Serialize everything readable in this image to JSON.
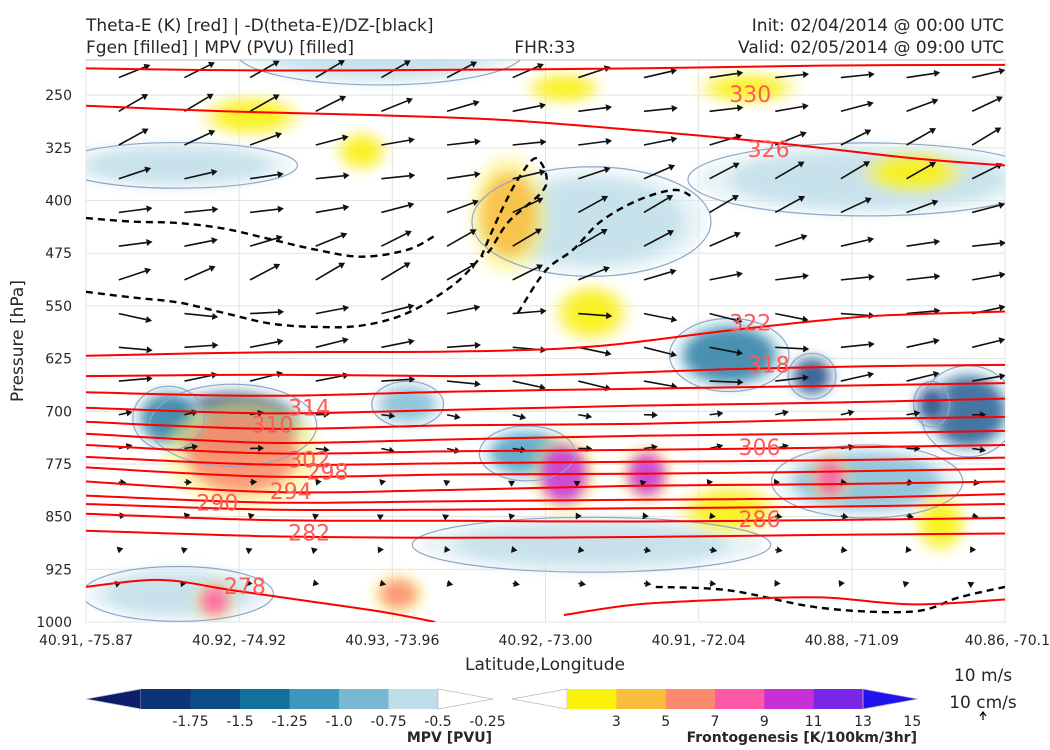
{
  "header": {
    "title_left_1": "Theta-E (K) [red] | -D(theta-E)/DZ-[black]",
    "title_left_2": "Fgen [filled] | MPV (PVU) [filled]",
    "title_center": "FHR:33",
    "title_right_1": "Init: 02/04/2014 @ 00:00 UTC",
    "title_right_2": "Valid: 02/05/2014 @ 09:00 UTC"
  },
  "chart_data": {
    "type": "cross-section",
    "xlabel": "Latitude,Longitude",
    "ylabel": "Pressure [hPa]",
    "ylim": [
      1000,
      200
    ],
    "y_scale": "linear, inverted",
    "grid": true,
    "x_ticks": [
      "40.91, -75.87",
      "40.92, -74.92",
      "40.93, -73.96",
      "40.92, -73.00",
      "40.91, -72.04",
      "40.88, -71.09",
      "40.86, -70.1"
    ],
    "y_ticks": [
      250,
      325,
      400,
      475,
      550,
      625,
      700,
      775,
      850,
      925,
      1000
    ],
    "colors": {
      "theta_e": "#ff0000",
      "stability_contour": "#000000",
      "mpv_contour_line": "#8fa6c8",
      "labels": "#ff5a5a"
    },
    "theta_e_contours": [
      {
        "label": "330",
        "label_pos": [
          0.7,
          260
        ],
        "x": [
          0,
          0.2,
          0.4,
          0.6,
          0.8,
          1.0
        ],
        "p": [
          212,
          215,
          214,
          212,
          208,
          207
        ]
      },
      {
        "label": "326",
        "label_pos": [
          0.72,
          338
        ],
        "x": [
          0,
          0.15,
          0.3,
          0.45,
          0.6,
          0.75,
          0.9,
          1.0
        ],
        "p": [
          265,
          273,
          278,
          285,
          300,
          318,
          340,
          350
        ]
      },
      {
        "label": "322",
        "label_pos": [
          0.7,
          585
        ],
        "x": [
          0,
          0.2,
          0.4,
          0.55,
          0.7,
          0.85,
          1.0
        ],
        "p": [
          621,
          616,
          615,
          608,
          585,
          565,
          558
        ]
      },
      {
        "label": "318",
        "label_pos": [
          0.72,
          645
        ],
        "x": [
          0,
          0.2,
          0.4,
          0.55,
          0.7,
          0.85,
          1.0
        ],
        "p": [
          650,
          648,
          650,
          647,
          640,
          636,
          634
        ]
      },
      {
        "label": "",
        "x": [
          0,
          0.2,
          0.4,
          0.6,
          0.8,
          1.0
        ],
        "p": [
          673,
          678,
          672,
          668,
          664,
          660
        ]
      },
      {
        "label": "314",
        "label_pos": [
          0.22,
          706
        ],
        "x": [
          0,
          0.2,
          0.4,
          0.6,
          0.8,
          1.0
        ],
        "p": [
          695,
          703,
          698,
          692,
          688,
          682
        ]
      },
      {
        "label": "310",
        "label_pos": [
          0.18,
          730
        ],
        "x": [
          0,
          0.2,
          0.4,
          0.6,
          0.8,
          1.0
        ],
        "p": [
          715,
          725,
          720,
          718,
          712,
          708
        ]
      },
      {
        "label": "",
        "x": [
          0,
          0.2,
          0.4,
          0.6,
          0.8,
          1.0
        ],
        "p": [
          732,
          745,
          740,
          735,
          732,
          728
        ]
      },
      {
        "label": "306",
        "label_pos": [
          0.71,
          762
        ],
        "x": [
          0,
          0.2,
          0.4,
          0.6,
          0.8,
          1.0
        ],
        "p": [
          748,
          760,
          757,
          755,
          752,
          748
        ]
      },
      {
        "label": "302",
        "label_pos": [
          0.22,
          780
        ],
        "x": [
          0,
          0.2,
          0.4,
          0.6,
          0.8,
          1.0
        ],
        "p": [
          765,
          776,
          774,
          772,
          770,
          766
        ]
      },
      {
        "label": "298",
        "label_pos": [
          0.24,
          797
        ],
        "x": [
          0,
          0.2,
          0.4,
          0.6,
          0.8,
          1.0
        ],
        "p": [
          780,
          793,
          790,
          789,
          786,
          782
        ]
      },
      {
        "label": "294",
        "label_pos": [
          0.2,
          825
        ],
        "x": [
          0,
          0.2,
          0.4,
          0.6,
          0.8,
          1.0
        ],
        "p": [
          800,
          815,
          812,
          806,
          804,
          800
        ]
      },
      {
        "label": "290",
        "label_pos": [
          0.12,
          841
        ],
        "x": [
          0,
          0.2,
          0.4,
          0.6,
          0.8,
          1.0
        ],
        "p": [
          820,
          830,
          828,
          826,
          824,
          818
        ]
      },
      {
        "label": "",
        "x": [
          0,
          0.2,
          0.4,
          0.6,
          0.8,
          1.0
        ],
        "p": [
          832,
          840,
          840,
          838,
          836,
          832
        ]
      },
      {
        "label": "286",
        "label_pos": [
          0.71,
          865
        ],
        "x": [
          0,
          0.2,
          0.4,
          0.6,
          0.8,
          1.0
        ],
        "p": [
          846,
          855,
          856,
          857,
          855,
          852
        ]
      },
      {
        "label": "282",
        "label_pos": [
          0.22,
          884
        ],
        "x": [
          0,
          0.2,
          0.4,
          0.6,
          0.8,
          1.0
        ],
        "p": [
          870,
          878,
          880,
          879,
          876,
          874
        ]
      },
      {
        "label": "278",
        "label_pos": [
          0.15,
          960
        ],
        "x": [
          0,
          0.08,
          0.16,
          0.24,
          0.32,
          0.38
        ],
        "p": [
          950,
          940,
          955,
          970,
          985,
          1000
        ]
      },
      {
        "label": "",
        "x": [
          0.52,
          0.6,
          0.7,
          0.8,
          0.9,
          1.0
        ],
        "p": [
          990,
          975,
          968,
          965,
          975,
          968
        ]
      }
    ],
    "stability_contours_dashed": [
      {
        "x": [
          0,
          0.05,
          0.1,
          0.15,
          0.2,
          0.25,
          0.3,
          0.35,
          0.38
        ],
        "p": [
          425,
          430,
          432,
          440,
          455,
          470,
          480,
          470,
          450
        ]
      },
      {
        "x": [
          0,
          0.05,
          0.1,
          0.15,
          0.2,
          0.25,
          0.3,
          0.35,
          0.4,
          0.43
        ],
        "p": [
          530,
          538,
          545,
          560,
          575,
          580,
          578,
          560,
          520,
          480
        ]
      },
      {
        "x": [
          0.43,
          0.45,
          0.47,
          0.49,
          0.5,
          0.46,
          0.44,
          0.43
        ],
        "p": [
          480,
          420,
          370,
          340,
          380,
          430,
          470,
          480
        ]
      },
      {
        "x": [
          0.47,
          0.5,
          0.53,
          0.56,
          0.6,
          0.64,
          0.66
        ],
        "p": [
          560,
          500,
          470,
          430,
          400,
          385,
          395
        ]
      },
      {
        "x": [
          0.62,
          0.7,
          0.8,
          0.9,
          0.95,
          1.0
        ],
        "p": [
          950,
          955,
          980,
          985,
          965,
          950
        ]
      }
    ],
    "mpv_filled_regions": [
      {
        "cx": 0.16,
        "cp": 720,
        "rx": 0.07,
        "rp": 45,
        "level": -1.75
      },
      {
        "cx": 0.09,
        "cp": 710,
        "rx": 0.03,
        "rp": 35,
        "level": -1.25
      },
      {
        "cx": 0.48,
        "cp": 760,
        "rx": 0.04,
        "rp": 30,
        "level": -1.0
      },
      {
        "cx": 0.7,
        "cp": 620,
        "rx": 0.05,
        "rp": 40,
        "level": -1.25
      },
      {
        "cx": 0.79,
        "cp": 650,
        "rx": 0.02,
        "rp": 25,
        "level": -1.75
      },
      {
        "cx": 0.96,
        "cp": 700,
        "rx": 0.04,
        "rp": 50,
        "level": -1.5
      },
      {
        "cx": 0.92,
        "cp": 690,
        "rx": 0.015,
        "rp": 25,
        "level": -1.75
      },
      {
        "cx": 0.35,
        "cp": 690,
        "rx": 0.03,
        "rp": 25,
        "level": -0.75
      },
      {
        "cx": 0.55,
        "cp": 890,
        "rx": 0.15,
        "rp": 30,
        "level": -0.5
      },
      {
        "cx": 0.85,
        "cp": 800,
        "rx": 0.08,
        "rp": 40,
        "level": -0.75
      },
      {
        "cx": 0.32,
        "cp": 190,
        "rx": 0.12,
        "rp": 35,
        "level": -0.25
      },
      {
        "cx": 0.55,
        "cp": 430,
        "rx": 0.1,
        "rp": 60,
        "level": -0.25
      },
      {
        "cx": 0.85,
        "cp": 370,
        "rx": 0.15,
        "rp": 40,
        "level": -0.25
      },
      {
        "cx": 0.1,
        "cp": 350,
        "rx": 0.1,
        "rp": 25,
        "level": -0.25
      },
      {
        "cx": 0.1,
        "cp": 960,
        "rx": 0.08,
        "rp": 30,
        "level": -0.25
      }
    ],
    "fgen_filled_regions": [
      {
        "cx": 0.52,
        "cp": 790,
        "rx": 0.025,
        "rp": 40,
        "level": 11
      },
      {
        "cx": 0.61,
        "cp": 790,
        "rx": 0.02,
        "rp": 30,
        "level": 11
      },
      {
        "cx": 0.81,
        "cp": 795,
        "rx": 0.015,
        "rp": 25,
        "level": 9
      },
      {
        "cx": 0.17,
        "cp": 760,
        "rx": 0.06,
        "rp": 55,
        "level": 7
      },
      {
        "cx": 0.14,
        "cp": 970,
        "rx": 0.015,
        "rp": 20,
        "level": 9
      },
      {
        "cx": 0.34,
        "cp": 960,
        "rx": 0.02,
        "rp": 20,
        "level": 7
      },
      {
        "cx": 0.46,
        "cp": 420,
        "rx": 0.03,
        "rp": 60,
        "level": 5
      },
      {
        "cx": 0.18,
        "cp": 280,
        "rx": 0.04,
        "rp": 20,
        "level": 3
      },
      {
        "cx": 0.52,
        "cp": 240,
        "rx": 0.03,
        "rp": 15,
        "level": 3
      },
      {
        "cx": 0.72,
        "cp": 240,
        "rx": 0.04,
        "rp": 15,
        "level": 3
      },
      {
        "cx": 0.9,
        "cp": 360,
        "rx": 0.04,
        "rp": 20,
        "level": 3
      },
      {
        "cx": 0.55,
        "cp": 560,
        "rx": 0.03,
        "rp": 30,
        "level": 3
      },
      {
        "cx": 0.3,
        "cp": 330,
        "rx": 0.02,
        "rp": 20,
        "level": 3
      },
      {
        "cx": 0.7,
        "cp": 840,
        "rx": 0.04,
        "rp": 25,
        "level": 3
      },
      {
        "cx": 0.93,
        "cp": 860,
        "rx": 0.02,
        "rp": 30,
        "level": 3
      }
    ],
    "wind_vectors": {
      "description": "ageostrophic circulation vectors, mostly westerly with ascent in the middle troposphere",
      "reference": "10 m/s",
      "reference_vertical": "10 cm/s"
    }
  },
  "colorbars": {
    "mpv": {
      "label": "MPV [PVU]",
      "tick_labels": [
        "-1.75",
        "-1.5",
        "-1.25",
        "-1.0",
        "-0.75",
        "-0.5",
        "-0.25"
      ],
      "colors": [
        "#0b1d6b",
        "#0d3477",
        "#0e4d87",
        "#12709b",
        "#3b97be",
        "#79b8d3",
        "#bfdde8",
        "#ffffff"
      ]
    },
    "fgen": {
      "label": "Frontogenesis [K/100km/3hr]",
      "tick_labels": [
        "3",
        "5",
        "7",
        "9",
        "11",
        "13",
        "15"
      ],
      "colors": [
        "#ffffff",
        "#f9f10a",
        "#fbbd3e",
        "#fb8a6e",
        "#ff59a5",
        "#c82fd7",
        "#7a26e6",
        "#2013f0"
      ]
    }
  },
  "reference_vector": {
    "label_1": "10 m/s",
    "label_2": "10 cm/s"
  }
}
